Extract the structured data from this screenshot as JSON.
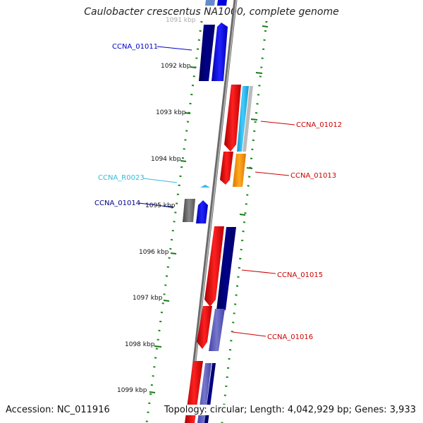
{
  "title": "Caulobacter crescentus NA1000, complete genome",
  "footer": {
    "accession": "Accession: NC_011916",
    "summary": "Topology: circular; Length: 4,042,929 bp; Genes: 3,933"
  },
  "ticks": [
    "1091 kbp",
    "1092 kbp",
    "1093 kbp",
    "1094 kbp",
    "1095 kbp",
    "1096 kbp",
    "1097 kbp",
    "1098 kbp",
    "1099 kbp"
  ],
  "gene_labels": [
    {
      "text": "CCNA_01011",
      "color": "#0000cc"
    },
    {
      "text": "CCNA_01012",
      "color": "#cc0000"
    },
    {
      "text": "CCNA_01013",
      "color": "#cc0000"
    },
    {
      "text": "CCNA_R0023",
      "color": "#33bbdd"
    },
    {
      "text": "CCNA_01014",
      "color": "#000088"
    },
    {
      "text": "CCNA_01015",
      "color": "#cc0000"
    },
    {
      "text": "CCNA_01016",
      "color": "#cc0000"
    }
  ],
  "colors": {
    "forward_cds": "#0000ee",
    "dark_cds": "#000077",
    "reverse_cds": "#ee0000",
    "rna": "#33bbee",
    "orange_feature": "#ff9900",
    "grey_feature": "#777777",
    "backbone": "#888888",
    "dotted_ring": "#1a8a1a"
  }
}
